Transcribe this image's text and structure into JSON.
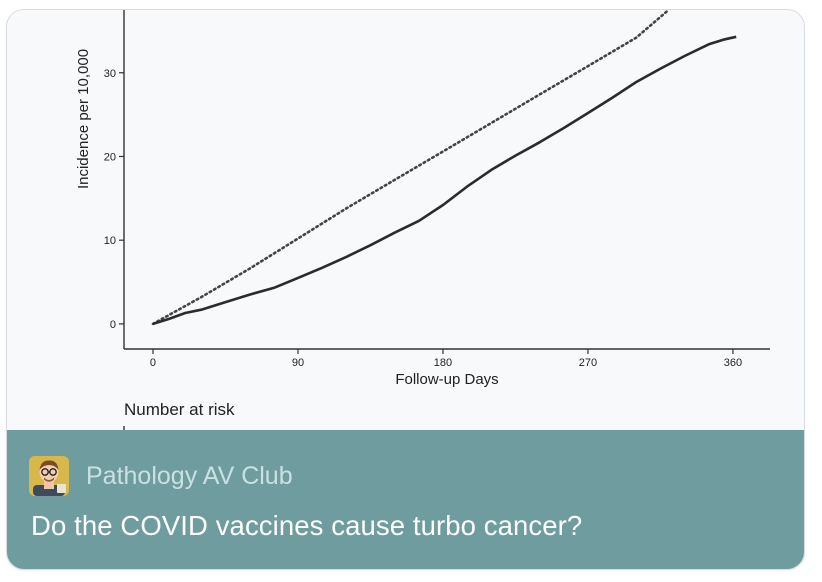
{
  "card": {
    "source_name": "Pathology AV Club",
    "title": "Do the COVID vaccines cause turbo cancer?",
    "avatar_icon": "person-avatar-icon",
    "preview_caption": "Number at risk"
  },
  "chart_data": {
    "type": "line",
    "xlabel": "Follow-up Days",
    "ylabel": "Incidence per 10,000",
    "xticks": [
      0,
      90,
      180,
      270,
      360
    ],
    "xtick_labels": [
      "0",
      "90",
      "180",
      "270",
      "360"
    ],
    "yticks": [
      0,
      10,
      20,
      30
    ],
    "ytick_labels": [
      "0",
      "10",
      "20",
      "30"
    ],
    "xlim": [
      -18,
      383
    ],
    "ylim": [
      -3,
      37.5
    ],
    "series": [
      {
        "name": "solid",
        "style": "solid",
        "x": [
          0,
          10,
          20,
          30,
          45,
          60,
          75,
          90,
          105,
          120,
          135,
          150,
          165,
          180,
          195,
          210,
          225,
          240,
          255,
          270,
          285,
          300,
          315,
          330,
          345,
          355,
          362
        ],
        "y": [
          0,
          0.6,
          1.3,
          1.7,
          2.6,
          3.5,
          4.3,
          5.5,
          6.7,
          8.0,
          9.4,
          10.9,
          12.3,
          14.2,
          16.4,
          18.4,
          20.1,
          21.7,
          23.4,
          25.2,
          27.0,
          28.9,
          30.5,
          32.0,
          33.4,
          34.0,
          34.3
        ]
      },
      {
        "name": "dotted",
        "style": "dotted",
        "x": [
          0,
          30,
          60,
          90,
          120,
          150,
          180,
          210,
          240,
          270,
          300,
          320
        ],
        "y": [
          0,
          3.2,
          6.6,
          10.2,
          13.8,
          17.2,
          20.6,
          24.0,
          27.4,
          30.8,
          34.2,
          37.5
        ]
      }
    ]
  }
}
